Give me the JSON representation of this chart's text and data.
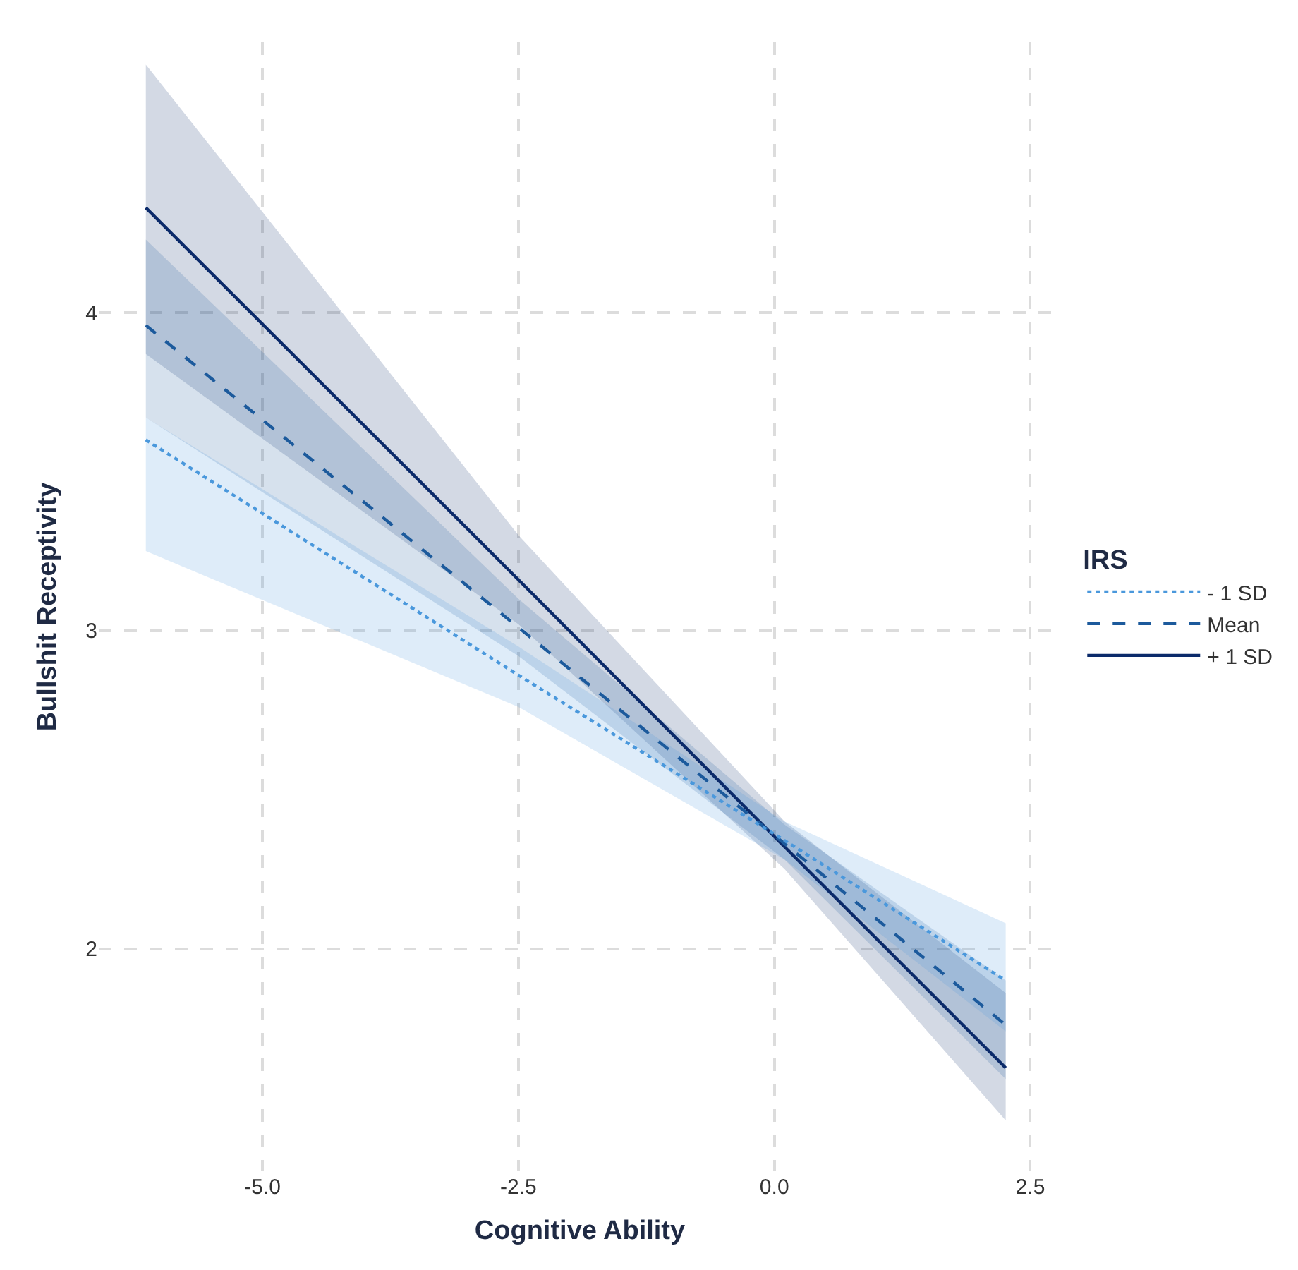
{
  "chart_data": {
    "type": "line",
    "xlabel": "Cognitive Ability",
    "ylabel": "Bullshit Receptivity",
    "legend_title": "IRS",
    "legend": "right",
    "x": [
      -6.14,
      -2.5,
      0.1,
      2.26
    ],
    "series": [
      {
        "name": "+ 1 SD",
        "color": "#0b2a6a",
        "line_style": "solid",
        "values": [
          4.33,
          3.16,
          2.32,
          1.625
        ],
        "lower": [
          3.87,
          3.02,
          2.25,
          1.46
        ],
        "upper": [
          4.78,
          3.3,
          2.4,
          1.86
        ]
      },
      {
        "name": "Mean",
        "color": "#1c5a9c",
        "line_style": "dashed",
        "values": [
          3.96,
          3.01,
          2.33,
          1.76
        ],
        "lower": [
          3.67,
          2.92,
          2.28,
          1.59
        ],
        "upper": [
          4.23,
          3.1,
          2.39,
          1.9
        ]
      },
      {
        "name": "- 1 SD",
        "color": "#4a98dc",
        "line_style": "dotted",
        "values": [
          3.6,
          2.86,
          2.34,
          1.9
        ],
        "lower": [
          3.25,
          2.76,
          2.28,
          1.74
        ],
        "upper": [
          3.67,
          2.95,
          2.4,
          2.08
        ]
      }
    ],
    "xlim": [
      -6.6,
      2.8
    ],
    "ylim": [
      1.3,
      4.85
    ],
    "xticks": [
      {
        "value": -5,
        "label": "-5.0"
      },
      {
        "value": -2.5,
        "label": "-2.5"
      },
      {
        "value": 0,
        "label": "0.0"
      },
      {
        "value": 2.5,
        "label": "2.5"
      }
    ],
    "yticks": [
      2,
      3,
      4
    ],
    "grid": true
  }
}
